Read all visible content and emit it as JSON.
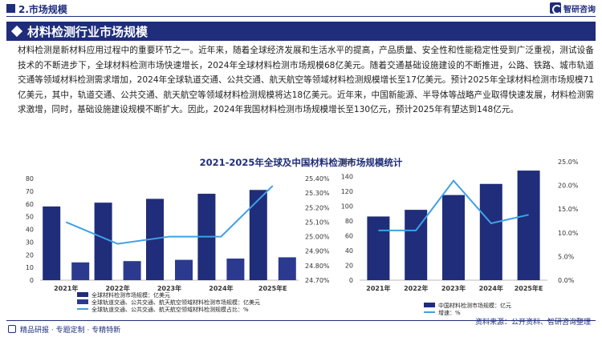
{
  "header": {
    "section": "2.市场规模",
    "logo_text": "智研咨询",
    "title": "材料检测行业市场规模"
  },
  "paragraph": "材料检测是新材料应用过程中的重要环节之一。近年来，随着全球经济发展和生活水平的提高，产品质量、安全性和性能稳定性受到广泛重视，测试设备技术的不断进步下，全球材料检测市场快速增长，2024年全球材料检测市场规模68亿美元。随着交通基础设施建设的不断推进，公路、铁路、城市轨道交通等领域材料检测需求增加，2024年全球轨道交通、公共交通、航天航空等领域材料检测规模增长至17亿美元。预计2025年全球材料检测市场规模71亿美元，其中，轨道交通、公共交通、航天航空等领域材料检测规模将达18亿美元。近年来，中国新能源、半导体等战略产业取得快速发展，材料检测需求激增，同时，基础设施建设规模不断扩大。因此，2024年我国材料检测市场规模增长至130亿元，预计2025年有望达到148亿元。",
  "chart_title": "2021-2025年全球及中国材料检测市场规模统计",
  "footer": {
    "slogan": "精品研报 · 专题定制 · 专精特新",
    "source": "资料来源：公开资料、智研咨询整理"
  },
  "colors": {
    "navy": "#1f2d7a",
    "bar_light": "#2b3a8f",
    "line": "#3fa0e8"
  },
  "chart_data": [
    {
      "type": "bar",
      "categories": [
        "2021年",
        "2022年",
        "2023年",
        "2024年",
        "2025年E"
      ],
      "series": [
        {
          "name": "全球材料检测市场规模：亿美元",
          "type": "bar",
          "axis": "left",
          "color": "#1f2d7a",
          "values": [
            58,
            61,
            64,
            68,
            71
          ]
        },
        {
          "name": "全球轨道交通、公共交通、航天航空领域材料检测市场规模：亿美元",
          "type": "bar",
          "axis": "left",
          "color": "#2b3a8f",
          "values": [
            14,
            15,
            16,
            17,
            18
          ]
        },
        {
          "name": "全球轨道交通、公共交通、航天航空领域材料检测规模占比：%",
          "type": "line",
          "axis": "right",
          "color": "#3fa0e8",
          "values": [
            25.1,
            24.95,
            25.0,
            25.0,
            25.35
          ]
        }
      ],
      "ylim_left": [
        0,
        80
      ],
      "yticks_left": [
        "0",
        "10",
        "20",
        "30",
        "40",
        "50",
        "60",
        "70",
        "80"
      ],
      "ylim_right": [
        24.7,
        25.4
      ],
      "yticks_right": [
        "24.70%",
        "24.80%",
        "24.90%",
        "25.00%",
        "25.10%",
        "25.20%",
        "25.30%",
        "25.40%"
      ],
      "legend_position": "bottom-left"
    },
    {
      "type": "bar",
      "categories": [
        "2021年",
        "2022年",
        "2023年",
        "2024年",
        "2025年E"
      ],
      "series": [
        {
          "name": "中国材料检测市场规模：亿元",
          "type": "bar",
          "axis": "left",
          "color": "#1f2d7a",
          "values": [
            86,
            95,
            115,
            130,
            148
          ]
        },
        {
          "name": "增速：%",
          "type": "line",
          "axis": "right",
          "color": "#3fa0e8",
          "values": [
            10.5,
            10.5,
            21.0,
            12.0,
            13.8
          ]
        }
      ],
      "ylim_left": [
        0,
        160
      ],
      "yticks_left": [
        "0",
        "20",
        "40",
        "60",
        "80",
        "100",
        "120",
        "140",
        "160"
      ],
      "ylim_right": [
        0,
        25
      ],
      "yticks_right": [
        "0.0%",
        "5.0%",
        "10.0%",
        "15.0%",
        "20.0%",
        "25.0%"
      ],
      "legend_position": "bottom-left"
    }
  ]
}
